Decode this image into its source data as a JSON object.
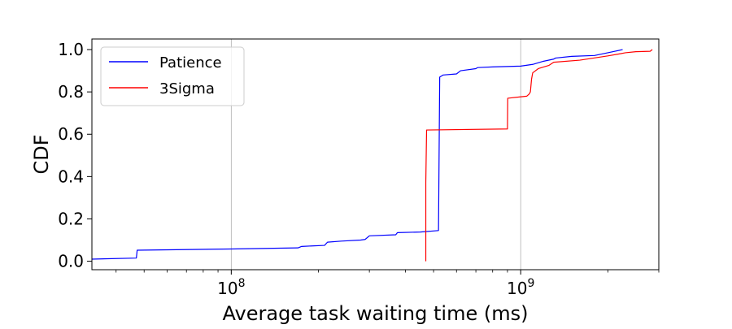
{
  "chart_data": {
    "type": "line",
    "xlabel": "Average task waiting time (ms)",
    "ylabel": "CDF",
    "x_scale": "log",
    "xlim": [
      33000000,
      3000000000
    ],
    "ylim": [
      -0.04,
      1.05
    ],
    "x_ticks": [
      {
        "value": 100000000,
        "base": "10",
        "exp": "8"
      },
      {
        "value": 1000000000,
        "base": "10",
        "exp": "9"
      }
    ],
    "y_ticks": [
      0.0,
      0.2,
      0.4,
      0.6,
      0.8,
      1.0
    ],
    "y_tick_labels": [
      "0.0",
      "0.2",
      "0.4",
      "0.6",
      "0.8",
      "1.0"
    ],
    "grid": "vertical at major x ticks",
    "legend_position": "top-left",
    "series": [
      {
        "name": "Patience",
        "color": "#0000ff",
        "x": [
          33000000,
          47000000,
          47300000,
          100000000,
          170000000,
          175000000,
          210000000,
          215000000,
          240000000,
          280000000,
          290000000,
          300000000,
          370000000,
          375000000,
          450000000,
          520000000,
          525000000,
          540000000,
          600000000,
          620000000,
          700000000,
          710000000,
          800000000,
          1000000000,
          1100000000,
          1200000000,
          1300000000,
          1320000000,
          1500000000,
          1800000000,
          2000000000,
          2250000000
        ],
        "y": [
          0.01,
          0.015,
          0.052,
          0.058,
          0.063,
          0.07,
          0.075,
          0.09,
          0.095,
          0.1,
          0.103,
          0.12,
          0.125,
          0.135,
          0.138,
          0.145,
          0.87,
          0.88,
          0.885,
          0.9,
          0.91,
          0.915,
          0.918,
          0.922,
          0.93,
          0.945,
          0.955,
          0.96,
          0.968,
          0.972,
          0.985,
          1.0
        ]
      },
      {
        "name": "3Sigma",
        "color": "#ff0000",
        "x": [
          470000000,
          470000000,
          473000000,
          900000000,
          902000000,
          1050000000,
          1070000000,
          1080000000,
          1090000000,
          1100000000,
          1150000000,
          1250000000,
          1300000000,
          1600000000,
          2000000000,
          2200000000,
          2300000000,
          2500000000,
          2800000000,
          2850000000
        ],
        "y": [
          0.0,
          0.37,
          0.62,
          0.625,
          0.77,
          0.78,
          0.79,
          0.8,
          0.86,
          0.89,
          0.91,
          0.925,
          0.94,
          0.95,
          0.97,
          0.98,
          0.985,
          0.99,
          0.992,
          1.0
        ]
      }
    ]
  }
}
